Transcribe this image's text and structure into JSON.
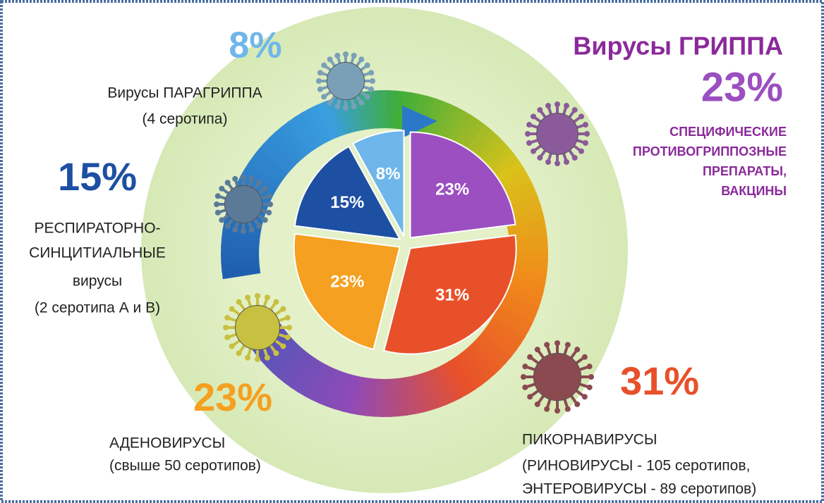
{
  "chart_data": {
    "type": "pie",
    "values": [
      23,
      31,
      23,
      15,
      8
    ],
    "value_labels": [
      "23%",
      "31%",
      "23%",
      "15%",
      "8%"
    ],
    "colors": [
      "#9b4fc0",
      "#e8502a",
      "#f5a020",
      "#1d4fa3",
      "#6fb6ea"
    ],
    "label_lines": [
      [
        "Вирусы ГРИППА"
      ],
      [
        "ПИКОРНАВИРУСЫ",
        "(РИНОВИРУСЫ - 105 серотипов,",
        "ЭНТЕРОВИРУСЫ - 89 серотипов)"
      ],
      [
        "АДЕНОВИРУСЫ",
        "(свыше 50 серотипов)"
      ],
      [
        "РЕСПИРАТОРНО-",
        "СИНЦИТИАЛЬНЫЕ",
        "вирусы",
        "(2 серотипа А и В)"
      ],
      [
        "Вирусы ПАРАГРИППА",
        "(4 серотипа)"
      ]
    ],
    "notes": [
      "СПЕЦИФИЧЕСКИЕ",
      "ПРОТИВОГРИППОЗНЫЕ",
      "ПРЕПАРАТЫ,",
      "ВАКЦИНЫ"
    ]
  }
}
